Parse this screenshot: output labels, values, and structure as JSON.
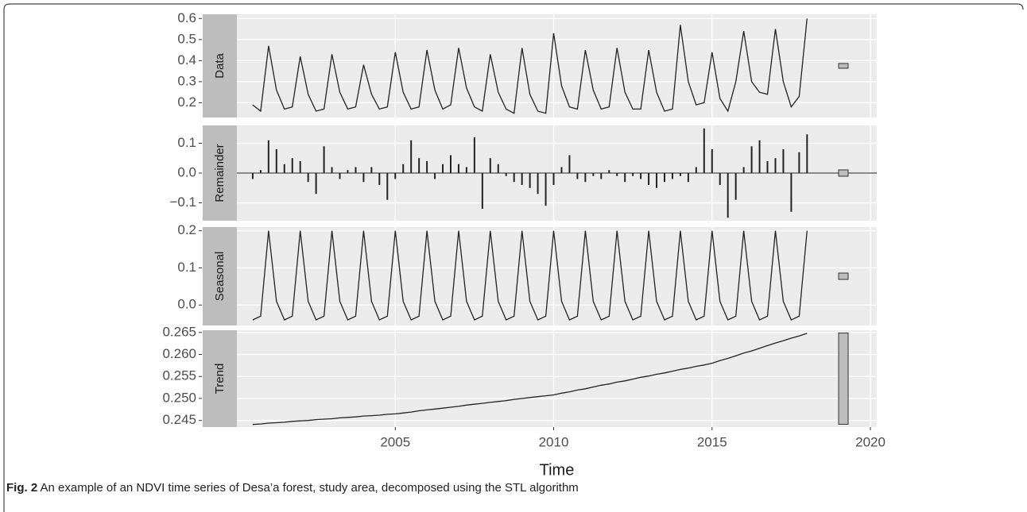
{
  "chart_data": {
    "type": "line",
    "x": [
      2000.5,
      2000.75,
      2001,
      2001.25,
      2001.5,
      2001.75,
      2002,
      2002.25,
      2002.5,
      2002.75,
      2003,
      2003.25,
      2003.5,
      2003.75,
      2004,
      2004.25,
      2004.5,
      2004.75,
      2005,
      2005.25,
      2005.5,
      2005.75,
      2006,
      2006.25,
      2006.5,
      2006.75,
      2007,
      2007.25,
      2007.5,
      2007.75,
      2008,
      2008.25,
      2008.5,
      2008.75,
      2009,
      2009.25,
      2009.5,
      2009.75,
      2010,
      2010.25,
      2010.5,
      2010.75,
      2011,
      2011.25,
      2011.5,
      2011.75,
      2012,
      2012.25,
      2012.5,
      2012.75,
      2013,
      2013.25,
      2013.5,
      2013.75,
      2014,
      2014.25,
      2014.5,
      2014.75,
      2015,
      2015.25,
      2015.5,
      2015.75,
      2016,
      2016.25,
      2016.5,
      2016.75,
      2017,
      2017.25,
      2017.5,
      2017.75,
      2018
    ],
    "xlim": [
      2000,
      2020.2
    ],
    "xticks": [
      2005,
      2010,
      2015,
      2020
    ],
    "xlabel": "Time",
    "grid": true,
    "color": "#222222",
    "series": [
      {
        "name": "Data",
        "type": "line",
        "ylim": [
          0.13,
          0.62
        ],
        "yticks": [
          0.2,
          0.3,
          0.4,
          0.5,
          0.6
        ],
        "values": [
          0.19,
          0.16,
          0.47,
          0.26,
          0.17,
          0.18,
          0.42,
          0.24,
          0.16,
          0.17,
          0.43,
          0.25,
          0.17,
          0.18,
          0.38,
          0.24,
          0.17,
          0.18,
          0.44,
          0.25,
          0.17,
          0.18,
          0.45,
          0.26,
          0.17,
          0.19,
          0.46,
          0.27,
          0.18,
          0.16,
          0.43,
          0.25,
          0.17,
          0.15,
          0.46,
          0.24,
          0.16,
          0.15,
          0.53,
          0.28,
          0.18,
          0.17,
          0.45,
          0.26,
          0.17,
          0.18,
          0.46,
          0.25,
          0.17,
          0.17,
          0.45,
          0.25,
          0.16,
          0.17,
          0.57,
          0.3,
          0.19,
          0.2,
          0.44,
          0.22,
          0.16,
          0.3,
          0.54,
          0.3,
          0.25,
          0.24,
          0.55,
          0.3,
          0.18,
          0.23,
          0.6
        ]
      },
      {
        "name": "Remainder",
        "type": "bar",
        "ylim": [
          -0.16,
          0.16
        ],
        "yticks": [
          {
            "value": -0.1,
            "label": "−0.1"
          },
          {
            "value": 0,
            "label": "0.0"
          },
          0.1
        ],
        "values": [
          -0.02,
          0.01,
          0.11,
          0.08,
          0.03,
          0.05,
          0.04,
          -0.03,
          -0.07,
          0.09,
          0.02,
          -0.02,
          0.01,
          0.02,
          -0.03,
          0.02,
          -0.04,
          -0.09,
          -0.02,
          0.03,
          0.11,
          0.05,
          0.04,
          -0.02,
          0.03,
          0.06,
          0.03,
          0.02,
          0.12,
          -0.12,
          0.05,
          0.03,
          -0.01,
          -0.03,
          -0.04,
          -0.05,
          -0.07,
          -0.11,
          -0.04,
          0.02,
          0.06,
          -0.02,
          -0.03,
          -0.01,
          -0.02,
          0.01,
          -0.01,
          -0.03,
          -0.01,
          -0.02,
          -0.04,
          -0.05,
          -0.03,
          -0.02,
          -0.01,
          -0.03,
          0.02,
          0.15,
          0.08,
          -0.04,
          -0.15,
          -0.09,
          0.02,
          0.09,
          0.11,
          0.04,
          0.05,
          0.08,
          -0.13,
          0.07,
          0.13
        ]
      },
      {
        "name": "Seasonal",
        "type": "line",
        "ylim": [
          -0.055,
          0.21
        ],
        "yticks": [
          {
            "value": 0,
            "label": "0.0"
          },
          0.1,
          0.2
        ],
        "values": [
          -0.04,
          -0.03,
          0.2,
          0.01,
          -0.04,
          -0.03,
          0.2,
          0.01,
          -0.04,
          -0.03,
          0.2,
          0.01,
          -0.04,
          -0.03,
          0.2,
          0.01,
          -0.04,
          -0.03,
          0.2,
          0.01,
          -0.04,
          -0.03,
          0.2,
          0.01,
          -0.04,
          -0.03,
          0.2,
          0.01,
          -0.04,
          -0.03,
          0.2,
          0.01,
          -0.04,
          -0.03,
          0.2,
          0.01,
          -0.04,
          -0.03,
          0.2,
          0.01,
          -0.04,
          -0.03,
          0.2,
          0.01,
          -0.04,
          -0.03,
          0.2,
          0.01,
          -0.04,
          -0.03,
          0.2,
          0.01,
          -0.04,
          -0.03,
          0.2,
          0.01,
          -0.04,
          -0.03,
          0.2,
          0.01,
          -0.04,
          -0.03,
          0.2,
          0.01,
          -0.04,
          -0.03,
          0.2,
          0.01,
          -0.04,
          -0.03,
          0.2
        ]
      },
      {
        "name": "Trend",
        "type": "line",
        "ylim": [
          0.2435,
          0.2655
        ],
        "yticks": [
          0.245,
          {
            "value": 0.25,
            "label": "0.250"
          },
          0.255,
          {
            "value": 0.26,
            "label": "0.260"
          },
          0.265
        ],
        "values": [
          0.2441,
          0.2442,
          0.2444,
          0.2445,
          0.2446,
          0.2448,
          0.2449,
          0.245,
          0.2452,
          0.2453,
          0.2454,
          0.2456,
          0.2457,
          0.2458,
          0.246,
          0.2461,
          0.2462,
          0.2464,
          0.2465,
          0.2467,
          0.2469,
          0.2472,
          0.2474,
          0.2476,
          0.2478,
          0.248,
          0.2482,
          0.2485,
          0.2487,
          0.2489,
          0.2491,
          0.2493,
          0.2495,
          0.2498,
          0.25,
          0.2502,
          0.2504,
          0.2506,
          0.2508,
          0.2512,
          0.2515,
          0.2519,
          0.2522,
          0.2526,
          0.253,
          0.2533,
          0.2537,
          0.254,
          0.2544,
          0.2548,
          0.2551,
          0.2555,
          0.2558,
          0.2562,
          0.2566,
          0.2569,
          0.2573,
          0.2576,
          0.258,
          0.2586,
          0.2591,
          0.2597,
          0.2603,
          0.2608,
          0.2614,
          0.262,
          0.2626,
          0.2631,
          0.2637,
          0.2642,
          0.2648
        ]
      }
    ]
  },
  "caption": {
    "label": "Fig. 2",
    "text": "An example of an NDVI time series of Desa’a forest, study area, decomposed using the STL algorithm"
  }
}
